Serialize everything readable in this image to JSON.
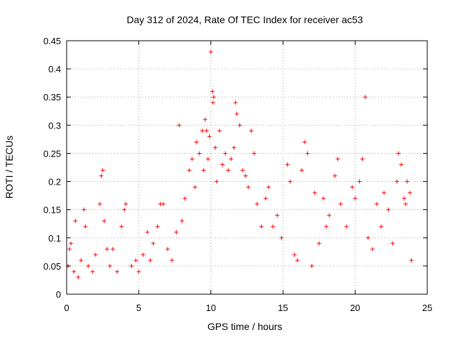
{
  "chart_data": {
    "type": "scatter",
    "title": "Day 312 of 2024, Rate Of TEC Index for receiver ac53",
    "xlabel": "GPS time / hours",
    "ylabel": "ROTI / TECUs",
    "xlim": [
      0,
      25
    ],
    "ylim": [
      0,
      0.45
    ],
    "xticks": [
      "0",
      "5",
      "10",
      "15",
      "20",
      "25"
    ],
    "yticks": [
      "0",
      "0.05",
      "0.1",
      "0.15",
      "0.2",
      "0.25",
      "0.3",
      "0.35",
      "0.4",
      "0.45"
    ],
    "grid": true,
    "marker": "+",
    "color": "#ff0000",
    "series": [
      {
        "points": [
          [
            0.1,
            0.05
          ],
          [
            0.2,
            0.08
          ],
          [
            0.3,
            0.09
          ],
          [
            0.5,
            0.04
          ],
          [
            0.6,
            0.13
          ],
          [
            0.8,
            0.03
          ],
          [
            1.0,
            0.06
          ],
          [
            1.2,
            0.15
          ],
          [
            1.3,
            0.12
          ],
          [
            1.5,
            0.05
          ],
          [
            1.8,
            0.04
          ],
          [
            2.0,
            0.07
          ],
          [
            2.3,
            0.16
          ],
          [
            2.4,
            0.21
          ],
          [
            2.5,
            0.22
          ],
          [
            2.6,
            0.13
          ],
          [
            2.8,
            0.08
          ],
          [
            3.0,
            0.05
          ],
          [
            3.2,
            0.08
          ],
          [
            3.5,
            0.04
          ],
          [
            3.8,
            0.12
          ],
          [
            4.0,
            0.15
          ],
          [
            4.1,
            0.16
          ],
          [
            4.5,
            0.05
          ],
          [
            4.8,
            0.06
          ],
          [
            5.0,
            0.04
          ],
          [
            5.3,
            0.07
          ],
          [
            5.6,
            0.11
          ],
          [
            5.8,
            0.06
          ],
          [
            6.0,
            0.09
          ],
          [
            6.3,
            0.12
          ],
          [
            6.5,
            0.16
          ],
          [
            6.7,
            0.16
          ],
          [
            7.0,
            0.08
          ],
          [
            7.3,
            0.06
          ],
          [
            7.6,
            0.11
          ],
          [
            7.8,
            0.3
          ],
          [
            8.0,
            0.13
          ],
          [
            8.2,
            0.17
          ],
          [
            8.5,
            0.22
          ],
          [
            8.7,
            0.24
          ],
          [
            8.9,
            0.19
          ],
          [
            9.0,
            0.27
          ],
          [
            9.2,
            0.25
          ],
          [
            9.4,
            0.29
          ],
          [
            9.5,
            0.22
          ],
          [
            9.6,
            0.31
          ],
          [
            9.7,
            0.29
          ],
          [
            9.8,
            0.24
          ],
          [
            9.9,
            0.28
          ],
          [
            10.0,
            0.43
          ],
          [
            10.1,
            0.36
          ],
          [
            10.15,
            0.34
          ],
          [
            10.2,
            0.35
          ],
          [
            10.3,
            0.26
          ],
          [
            10.4,
            0.2
          ],
          [
            10.6,
            0.29
          ],
          [
            10.8,
            0.23
          ],
          [
            11.0,
            0.25
          ],
          [
            11.2,
            0.22
          ],
          [
            11.4,
            0.24
          ],
          [
            11.6,
            0.26
          ],
          [
            11.7,
            0.34
          ],
          [
            11.8,
            0.32
          ],
          [
            12.0,
            0.3
          ],
          [
            12.2,
            0.22
          ],
          [
            12.4,
            0.21
          ],
          [
            12.6,
            0.19
          ],
          [
            12.8,
            0.29
          ],
          [
            13.0,
            0.25
          ],
          [
            13.2,
            0.16
          ],
          [
            13.5,
            0.12
          ],
          [
            13.8,
            0.17
          ],
          [
            14.0,
            0.19
          ],
          [
            14.3,
            0.12
          ],
          [
            14.6,
            0.14
          ],
          [
            14.9,
            0.1
          ],
          [
            15.3,
            0.23
          ],
          [
            15.5,
            0.2
          ],
          [
            15.8,
            0.07
          ],
          [
            16.0,
            0.06
          ],
          [
            16.3,
            0.22
          ],
          [
            16.5,
            0.27
          ],
          [
            16.7,
            0.25
          ],
          [
            17.0,
            0.05
          ],
          [
            17.2,
            0.18
          ],
          [
            17.5,
            0.09
          ],
          [
            17.8,
            0.17
          ],
          [
            18.0,
            0.12
          ],
          [
            18.2,
            0.14
          ],
          [
            18.6,
            0.21
          ],
          [
            18.8,
            0.24
          ],
          [
            19.0,
            0.16
          ],
          [
            19.4,
            0.12
          ],
          [
            19.8,
            0.19
          ],
          [
            20.0,
            0.17
          ],
          [
            20.3,
            0.2
          ],
          [
            20.5,
            0.24
          ],
          [
            20.7,
            0.35
          ],
          [
            20.9,
            0.1
          ],
          [
            21.2,
            0.08
          ],
          [
            21.5,
            0.16
          ],
          [
            21.8,
            0.12
          ],
          [
            22.0,
            0.18
          ],
          [
            22.3,
            0.15
          ],
          [
            22.6,
            0.09
          ],
          [
            22.9,
            0.2
          ],
          [
            23.0,
            0.25
          ],
          [
            23.2,
            0.23
          ],
          [
            23.4,
            0.17
          ],
          [
            23.5,
            0.16
          ],
          [
            23.6,
            0.2
          ],
          [
            23.8,
            0.18
          ],
          [
            23.9,
            0.06
          ]
        ]
      }
    ]
  }
}
